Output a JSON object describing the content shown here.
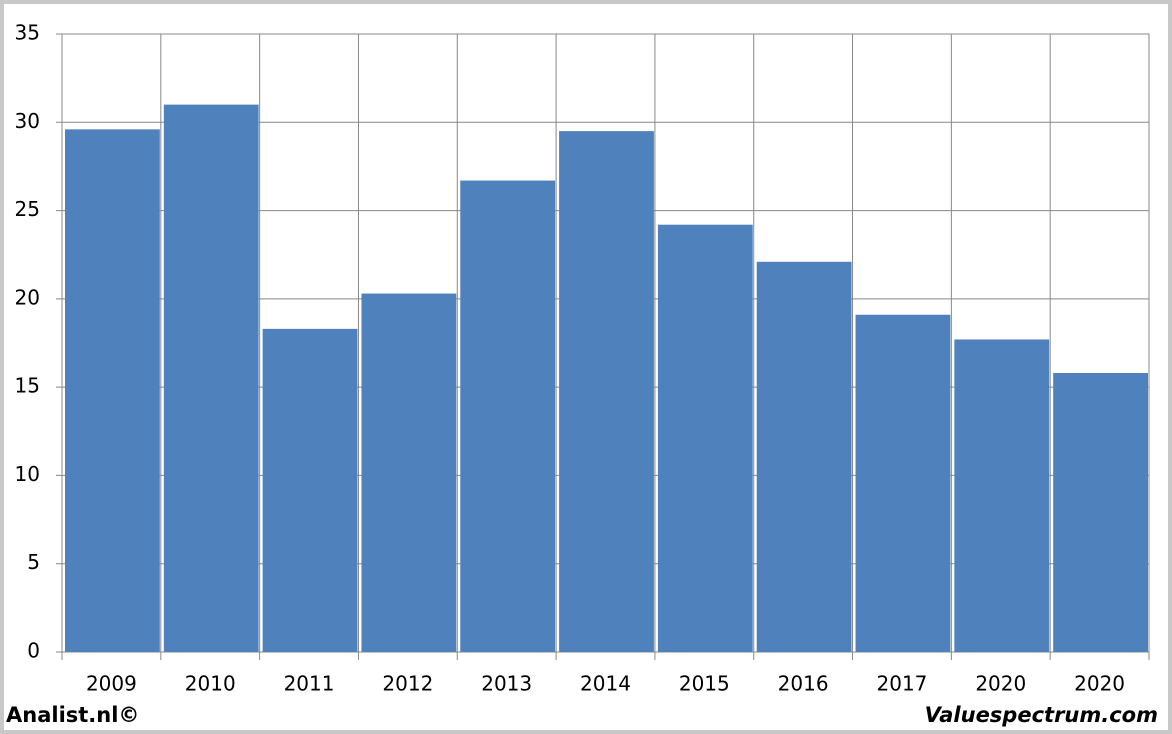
{
  "chart_data": {
    "type": "bar",
    "categories": [
      "2009",
      "2010",
      "2011",
      "2012",
      "2013",
      "2014",
      "2015",
      "2016",
      "2017",
      "2020",
      "2020"
    ],
    "values": [
      29.6,
      31.0,
      18.3,
      20.3,
      26.7,
      29.5,
      24.2,
      22.1,
      19.1,
      17.7,
      15.8
    ],
    "color": "#4f81bd",
    "ylim": [
      0,
      35
    ],
    "yticks": [
      0,
      5,
      10,
      15,
      20,
      25,
      30,
      35
    ],
    "grid": true
  },
  "footer": {
    "left": "Analist.nl©",
    "right": "Valuespectrum.com"
  }
}
